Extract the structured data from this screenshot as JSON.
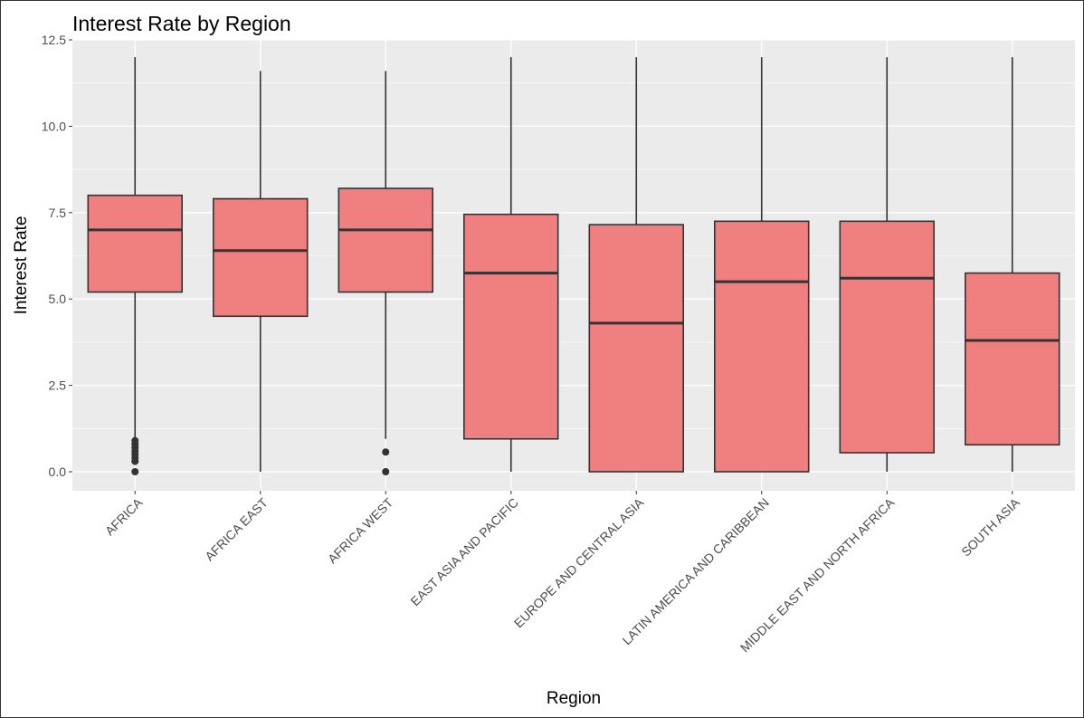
{
  "chart_data": {
    "type": "box",
    "title": "Interest Rate by Region",
    "xlabel": "Region",
    "ylabel": "Interest Rate",
    "ylim": [
      -0.55,
      12.5
    ],
    "yticks": [
      0.0,
      2.5,
      5.0,
      7.5,
      10.0,
      12.5
    ],
    "ytick_labels": [
      "0.0",
      "2.5",
      "5.0",
      "7.5",
      "10.0",
      "12.5"
    ],
    "grid": true,
    "fill_color": "#F08080",
    "outline_color": "#333333",
    "panel_color": "#EBEBEB",
    "categories": [
      "AFRICA",
      "AFRICA EAST",
      "AFRICA WEST",
      "EAST ASIA AND PACIFIC",
      "EUROPE AND CENTRAL ASIA",
      "LATIN AMERICA AND CARIBBEAN",
      "MIDDLE EAST AND NORTH AFRICA",
      "SOUTH ASIA"
    ],
    "boxes": [
      {
        "min": 0.95,
        "q1": 5.2,
        "median": 7.0,
        "q3": 8.0,
        "max": 12.0,
        "outliers": [
          0.0,
          0.3,
          0.4,
          0.5,
          0.6,
          0.7,
          0.8,
          0.9
        ]
      },
      {
        "min": 0.0,
        "q1": 4.5,
        "median": 6.4,
        "q3": 7.9,
        "max": 11.6,
        "outliers": []
      },
      {
        "min": 0.95,
        "q1": 5.2,
        "median": 7.0,
        "q3": 8.2,
        "max": 11.6,
        "outliers": [
          0.0,
          0.57
        ]
      },
      {
        "min": 0.0,
        "q1": 0.95,
        "median": 5.75,
        "q3": 7.45,
        "max": 12.0,
        "outliers": []
      },
      {
        "min": 0.0,
        "q1": 0.0,
        "median": 4.3,
        "q3": 7.15,
        "max": 12.0,
        "outliers": []
      },
      {
        "min": 0.0,
        "q1": 0.0,
        "median": 5.5,
        "q3": 7.25,
        "max": 12.0,
        "outliers": []
      },
      {
        "min": 0.0,
        "q1": 0.55,
        "median": 5.6,
        "q3": 7.25,
        "max": 12.0,
        "outliers": []
      },
      {
        "min": 0.0,
        "q1": 0.78,
        "median": 3.8,
        "q3": 5.75,
        "max": 12.0,
        "outliers": []
      }
    ]
  }
}
